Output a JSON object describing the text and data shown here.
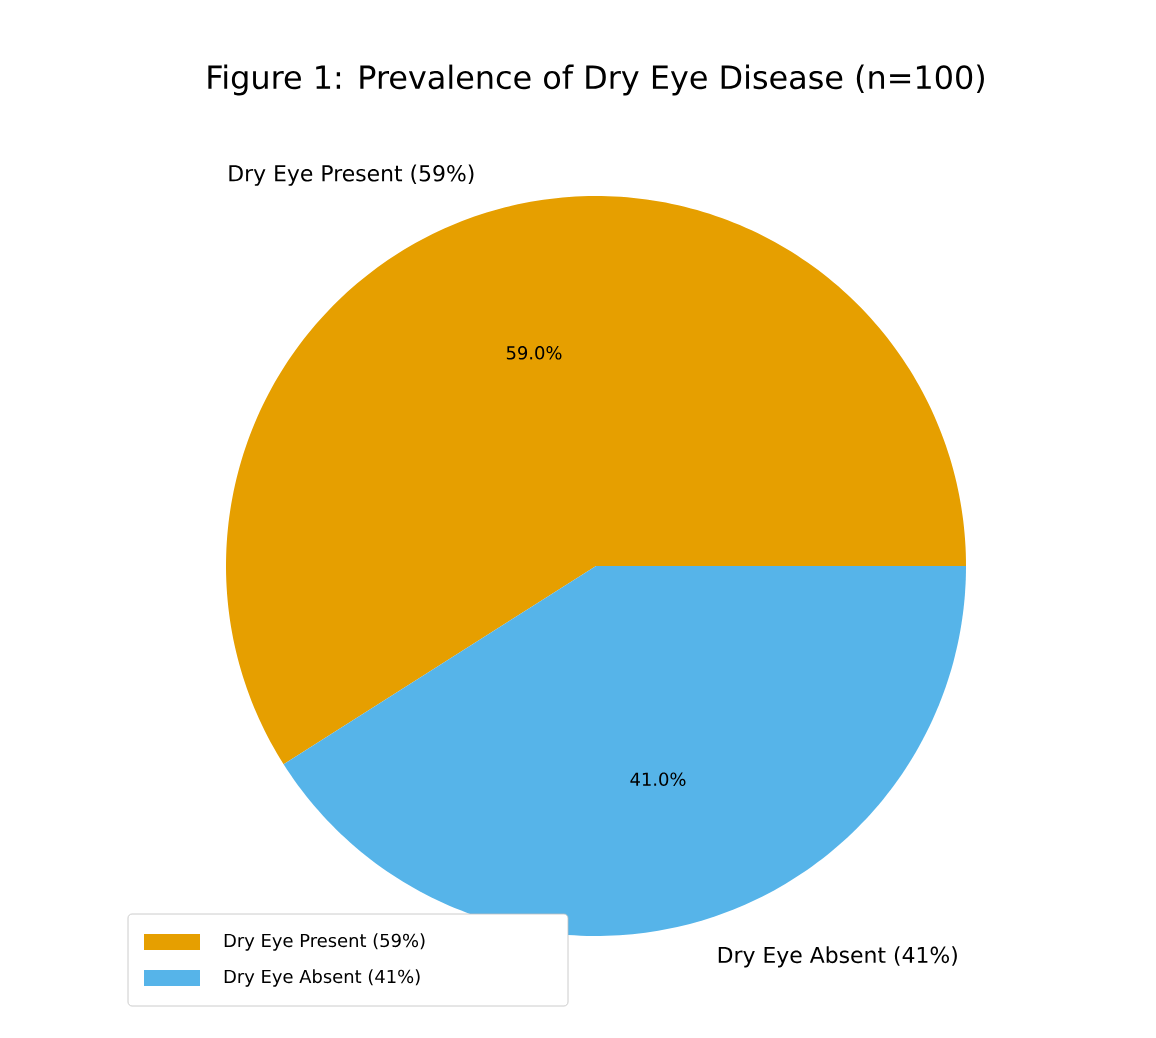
{
  "chart_data": {
    "type": "pie",
    "title": "Figure 1: Prevalence of Dry Eye Disease (n=100)",
    "categories": [
      "Dry Eye Present (59%)",
      "Dry Eye Absent (41%)"
    ],
    "values": [
      59,
      41
    ],
    "colors": [
      "#e69f00",
      "#56b4e9"
    ],
    "value_labels": [
      "59.0%",
      "41.0%"
    ],
    "legend": "bottom left"
  }
}
